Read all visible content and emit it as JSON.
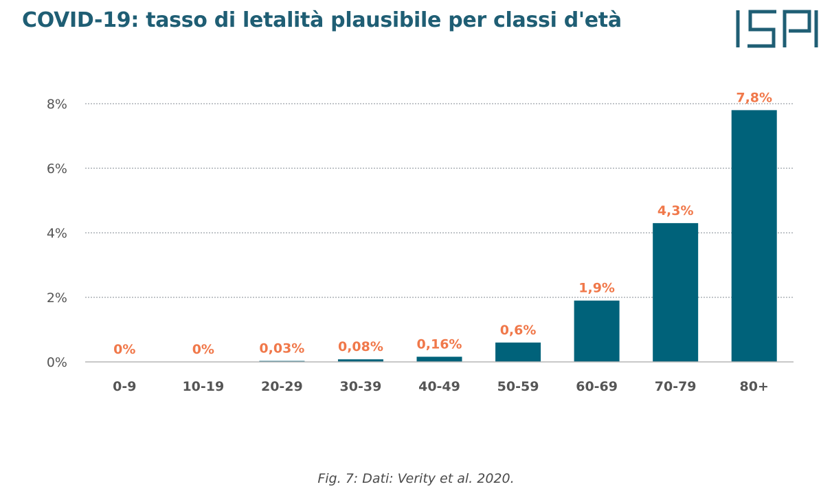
{
  "header": {
    "title": "COVID-19: tasso di letalità plausibile per classi d'età",
    "logo_text": "ISPI"
  },
  "caption": "Fig. 7: Dati: Verity et al. 2020.",
  "colors": {
    "bar": "#00627a",
    "data_label": "#f0784a",
    "title": "#1f5e74",
    "axis_text": "#555555",
    "grid": "#9aa0a6"
  },
  "chart_data": {
    "type": "bar",
    "title": "",
    "xlabel": "",
    "ylabel": "",
    "categories": [
      "0-9",
      "10-19",
      "20-29",
      "30-39",
      "40-49",
      "50-59",
      "60-69",
      "70-79",
      "80+"
    ],
    "values": [
      0,
      0,
      0.03,
      0.08,
      0.16,
      0.6,
      1.9,
      4.3,
      7.8
    ],
    "data_labels": [
      "0%",
      "0%",
      "0,03%",
      "0,08%",
      "0,16%",
      "0,6%",
      "1,9%",
      "4,3%",
      "7,8%"
    ],
    "ylim": [
      0,
      8
    ],
    "yticks": [
      0,
      2,
      4,
      6,
      8
    ],
    "ytick_labels": [
      "0%",
      "2%",
      "4%",
      "6%",
      "8%"
    ],
    "grid": true,
    "legend": "none"
  }
}
